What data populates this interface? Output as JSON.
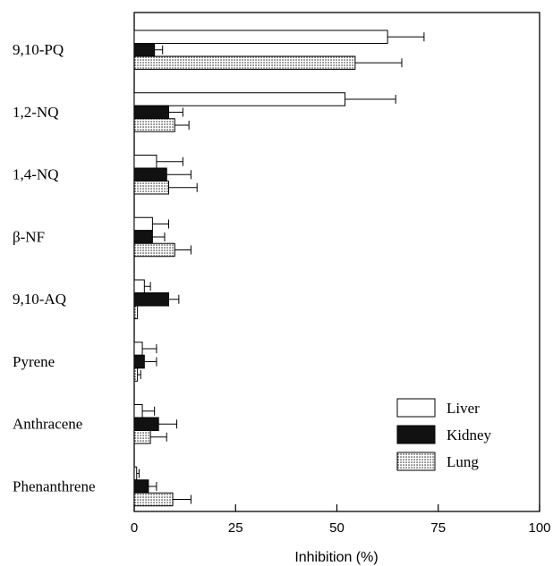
{
  "chart_data": {
    "type": "bar",
    "orientation": "horizontal",
    "categories": [
      "9,10-PQ",
      "1,2-NQ",
      "1,4-NQ",
      "β-NF",
      "9,10-AQ",
      "Pyrene",
      "Anthracene",
      "Phenanthrene"
    ],
    "series": [
      {
        "name": "Liver",
        "color": "#ffffff",
        "pattern": "none",
        "values": [
          62.5,
          52,
          5.5,
          4.5,
          2.5,
          2,
          2,
          0.6
        ],
        "errors": [
          9,
          12.5,
          6.5,
          4,
          1.5,
          3.5,
          3,
          0.6
        ]
      },
      {
        "name": "Kidney",
        "color": "#111111",
        "pattern": "solid",
        "values": [
          5,
          8.5,
          8,
          4.5,
          8.5,
          2.5,
          6,
          3.5
        ],
        "errors": [
          2,
          3.5,
          6,
          3,
          2.5,
          3,
          4.5,
          2
        ]
      },
      {
        "name": "Lung",
        "color": "#ffffff",
        "pattern": "dots",
        "values": [
          54.5,
          10,
          8.5,
          10,
          0.8,
          0.8,
          4,
          9.5
        ],
        "errors": [
          11.5,
          3.5,
          7,
          4,
          0,
          0.8,
          4,
          4.5
        ]
      }
    ],
    "xlabel": "Inhibition (%)",
    "ylabel": "",
    "xlim": [
      0,
      100
    ],
    "xticks": [
      "0",
      "25",
      "50",
      "75",
      "100"
    ],
    "legend": {
      "placement": "bottom-right",
      "entries": [
        "Liver",
        "Kidney",
        "Lung"
      ]
    },
    "grid": false
  }
}
